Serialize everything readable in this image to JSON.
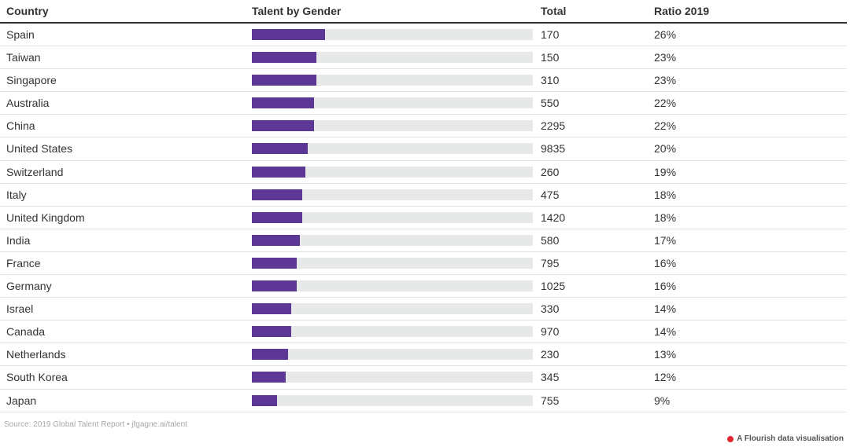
{
  "header": {
    "country": "Country",
    "talent": "Talent by Gender",
    "total": "Total",
    "ratio": "Ratio 2019"
  },
  "chart_data": {
    "type": "bar",
    "title": "",
    "xlabel": "Talent by Gender",
    "ylabel": "",
    "xlim": [
      0,
      100
    ],
    "categories": [
      "Spain",
      "Taiwan",
      "Singapore",
      "Australia",
      "China",
      "United States",
      "Switzerland",
      "Italy",
      "United Kingdom",
      "India",
      "France",
      "Germany",
      "Israel",
      "Canada",
      "Netherlands",
      "South Korea",
      "Japan"
    ],
    "series": [
      {
        "name": "Ratio 2019 (%)",
        "values": [
          26,
          23,
          23,
          22,
          22,
          20,
          19,
          18,
          18,
          17,
          16,
          16,
          14,
          14,
          13,
          12,
          9
        ]
      },
      {
        "name": "Total",
        "values": [
          170,
          150,
          310,
          550,
          2295,
          9835,
          260,
          475,
          1420,
          580,
          795,
          1025,
          330,
          970,
          230,
          345,
          755
        ]
      }
    ],
    "rows": [
      {
        "country": "Spain",
        "total": "170",
        "ratio": "26%",
        "value": 26
      },
      {
        "country": "Taiwan",
        "total": "150",
        "ratio": "23%",
        "value": 23
      },
      {
        "country": "Singapore",
        "total": "310",
        "ratio": "23%",
        "value": 23
      },
      {
        "country": "Australia",
        "total": "550",
        "ratio": "22%",
        "value": 22
      },
      {
        "country": "China",
        "total": "2295",
        "ratio": "22%",
        "value": 22
      },
      {
        "country": "United States",
        "total": "9835",
        "ratio": "20%",
        "value": 20
      },
      {
        "country": "Switzerland",
        "total": "260",
        "ratio": "19%",
        "value": 19
      },
      {
        "country": "Italy",
        "total": "475",
        "ratio": "18%",
        "value": 18
      },
      {
        "country": "United Kingdom",
        "total": "1420",
        "ratio": "18%",
        "value": 18
      },
      {
        "country": "India",
        "total": "580",
        "ratio": "17%",
        "value": 17
      },
      {
        "country": "France",
        "total": "795",
        "ratio": "16%",
        "value": 16
      },
      {
        "country": "Germany",
        "total": "1025",
        "ratio": "16%",
        "value": 16
      },
      {
        "country": "Israel",
        "total": "330",
        "ratio": "14%",
        "value": 14
      },
      {
        "country": "Canada",
        "total": "970",
        "ratio": "14%",
        "value": 14
      },
      {
        "country": "Netherlands",
        "total": "230",
        "ratio": "13%",
        "value": 13
      },
      {
        "country": "South Korea",
        "total": "345",
        "ratio": "12%",
        "value": 12
      },
      {
        "country": "Japan",
        "total": "755",
        "ratio": "9%",
        "value": 9
      }
    ]
  },
  "colors": {
    "bar": "#5c3795",
    "track": "#e7e8e8",
    "logo_dot": "#e0262f"
  },
  "footer": {
    "source": "Source: 2019 Global Talent Report • jfgagne.ai/talent",
    "credit": "A Flourish data visualisation"
  }
}
